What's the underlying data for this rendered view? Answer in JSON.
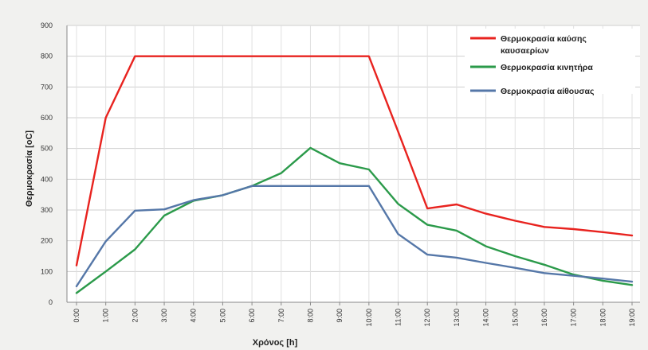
{
  "chart_data": {
    "type": "line",
    "title": "",
    "xlabel": "Χρόνος [h]",
    "ylabel": "Θερμοκρασία [oC]",
    "ylim": [
      0,
      900
    ],
    "yticks": [
      0,
      100,
      200,
      300,
      400,
      500,
      600,
      700,
      800,
      900
    ],
    "grid": "on",
    "legend_position": "top-right",
    "categories": [
      "0:00",
      "1:00",
      "2:00",
      "3:00",
      "4:00",
      "5:00",
      "6:00",
      "7:00",
      "8:00",
      "9:00",
      "10:00",
      "11:00",
      "12:00",
      "13:00",
      "14:00",
      "15:00",
      "16:00",
      "17:00",
      "18:00",
      "19:00"
    ],
    "series": [
      {
        "name": "Θερμοκρασία καύσης καυσαερίων",
        "color": "#e8231f",
        "values": [
          120,
          600,
          800,
          800,
          800,
          800,
          800,
          800,
          800,
          800,
          800,
          555,
          305,
          318,
          288,
          265,
          245,
          238,
          228,
          217
        ]
      },
      {
        "name": "Θερμοκρασία κινητήρα",
        "color": "#2b9a4a",
        "values": [
          30,
          100,
          172,
          282,
          330,
          348,
          378,
          420,
          502,
          452,
          432,
          320,
          252,
          233,
          182,
          150,
          122,
          90,
          70,
          56
        ]
      },
      {
        "name": "Θερμοκρασία αίθουσας",
        "color": "#5577a8",
        "values": [
          52,
          198,
          298,
          302,
          332,
          348,
          378,
          378,
          378,
          378,
          378,
          222,
          155,
          145,
          128,
          112,
          95,
          86,
          77,
          67
        ]
      }
    ]
  }
}
